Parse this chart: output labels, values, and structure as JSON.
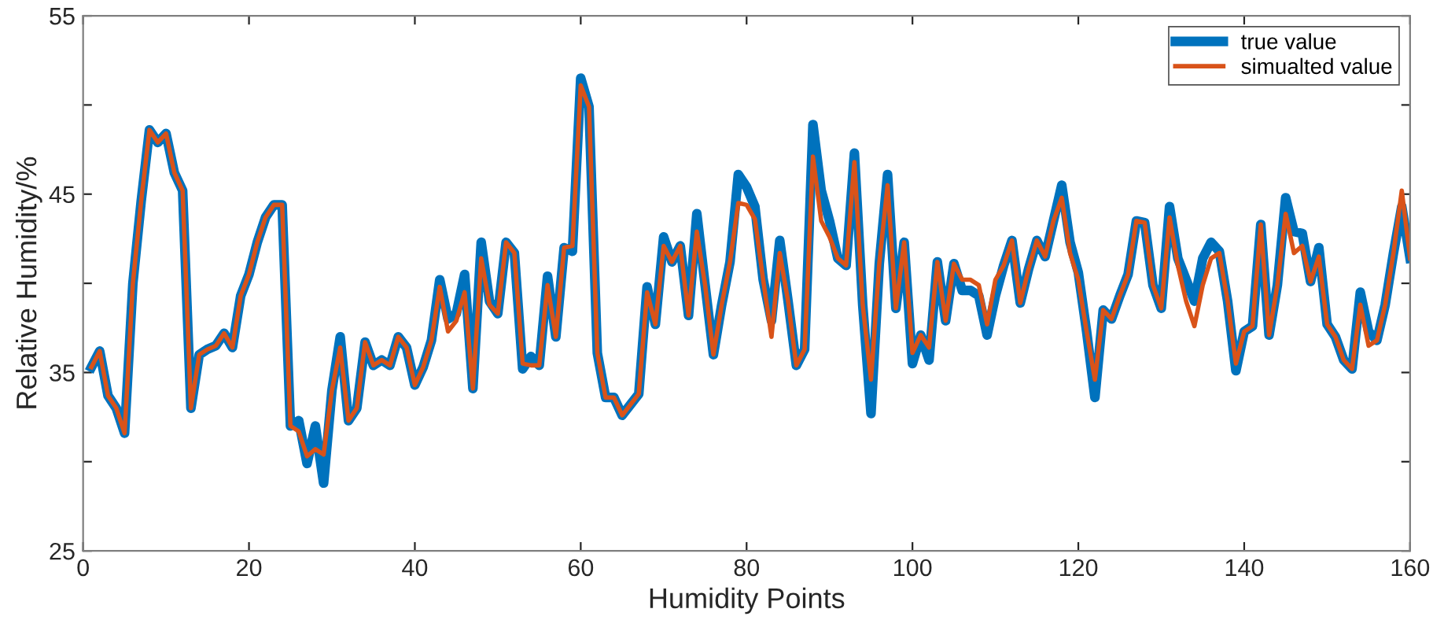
{
  "chart_data": {
    "type": "line",
    "xlabel": "Humidity Points",
    "ylabel": "Relative Humidity/%",
    "x": [
      1,
      2,
      3,
      4,
      5,
      6,
      7,
      8,
      9,
      10,
      11,
      12,
      13,
      14,
      15,
      16,
      17,
      18,
      19,
      20,
      21,
      22,
      23,
      24,
      25,
      26,
      27,
      28,
      29,
      30,
      31,
      32,
      33,
      34,
      35,
      36,
      37,
      38,
      39,
      40,
      41,
      42,
      43,
      44,
      45,
      46,
      47,
      48,
      49,
      50,
      51,
      52,
      53,
      54,
      55,
      56,
      57,
      58,
      59,
      60,
      61,
      62,
      63,
      64,
      65,
      66,
      67,
      68,
      69,
      70,
      71,
      72,
      73,
      74,
      75,
      76,
      77,
      78,
      79,
      80,
      81,
      82,
      83,
      84,
      85,
      86,
      87,
      88,
      89,
      90,
      91,
      92,
      93,
      94,
      95,
      96,
      97,
      98,
      99,
      100,
      101,
      102,
      103,
      104,
      105,
      106,
      107,
      108,
      109,
      110,
      111,
      112,
      113,
      114,
      115,
      116,
      117,
      118,
      119,
      120,
      121,
      122,
      123,
      124,
      125,
      126,
      127,
      128,
      129,
      130,
      131,
      132,
      133,
      134,
      135,
      136,
      137,
      138,
      139,
      140,
      141,
      142,
      143,
      144,
      145,
      146,
      147,
      148,
      149,
      150,
      151,
      152,
      153,
      154,
      155,
      156,
      157,
      158,
      159,
      160
    ],
    "series": [
      {
        "name": "true value",
        "color": "#0072bd",
        "values": [
          35.3,
          36.2,
          33.7,
          33.0,
          31.6,
          40.0,
          44.6,
          48.6,
          47.9,
          48.4,
          46.2,
          45.2,
          33.0,
          36.0,
          36.3,
          36.5,
          37.2,
          36.4,
          39.3,
          40.5,
          42.3,
          43.7,
          44.4,
          44.4,
          32.0,
          32.3,
          29.9,
          32.0,
          28.8,
          34.0,
          37.0,
          32.3,
          33.0,
          36.7,
          35.4,
          35.7,
          35.4,
          37.0,
          36.4,
          34.3,
          35.3,
          36.8,
          40.2,
          38.0,
          38.3,
          40.5,
          34.1,
          42.3,
          39.0,
          38.3,
          42.3,
          41.7,
          35.2,
          35.9,
          35.4,
          40.4,
          37.0,
          42.0,
          41.8,
          51.5,
          49.9,
          36.1,
          33.6,
          33.6,
          32.6,
          33.2,
          33.8,
          39.8,
          37.7,
          42.6,
          41.2,
          42.1,
          38.2,
          43.9,
          39.9,
          36.0,
          38.8,
          41.2,
          46.1,
          45.4,
          44.3,
          40.2,
          37.9,
          42.4,
          39.0,
          35.4,
          36.3,
          48.9,
          45.2,
          43.5,
          41.4,
          41.0,
          47.3,
          38.8,
          32.7,
          41.1,
          46.1,
          38.6,
          42.3,
          35.5,
          37.1,
          35.7,
          41.2,
          37.9,
          41.1,
          39.6,
          39.6,
          39.3,
          37.1,
          39.3,
          41.0,
          42.4,
          38.9,
          40.8,
          42.4,
          41.5,
          43.5,
          45.5,
          42.3,
          40.6,
          37.3,
          33.6,
          38.5,
          38.0,
          39.3,
          40.5,
          43.5,
          43.4,
          39.9,
          38.6,
          44.3,
          41.4,
          40.2,
          39.0,
          41.4,
          42.3,
          41.8,
          39.0,
          35.1,
          37.3,
          37.6,
          43.3,
          37.1,
          39.9,
          44.8,
          42.9,
          42.8,
          40.1,
          42.0,
          37.7,
          37.0,
          35.7,
          35.2,
          39.5,
          37.3,
          36.8,
          38.8,
          41.7,
          44.3,
          41.4
        ]
      },
      {
        "name": "simualted value",
        "color": "#d95319",
        "values": [
          35.3,
          36.2,
          33.7,
          33.0,
          31.6,
          40.0,
          44.6,
          48.6,
          47.9,
          48.4,
          46.2,
          45.2,
          33.0,
          36.0,
          36.3,
          36.5,
          37.2,
          36.4,
          39.3,
          40.5,
          42.3,
          43.7,
          44.4,
          44.4,
          32.0,
          31.7,
          30.3,
          30.7,
          30.4,
          34.0,
          36.4,
          32.3,
          33.0,
          36.7,
          35.4,
          35.7,
          35.4,
          37.0,
          36.4,
          34.3,
          35.3,
          36.8,
          39.8,
          37.3,
          37.9,
          39.5,
          34.1,
          41.4,
          38.8,
          38.3,
          42.3,
          41.7,
          35.5,
          35.4,
          35.4,
          39.9,
          37.0,
          42.0,
          42.1,
          51.1,
          49.9,
          36.1,
          33.6,
          33.6,
          32.6,
          33.2,
          33.8,
          39.5,
          37.7,
          42.1,
          41.2,
          42.1,
          38.2,
          42.9,
          39.9,
          36.0,
          38.8,
          41.2,
          44.5,
          44.4,
          43.6,
          40.2,
          37.0,
          41.7,
          39.0,
          35.4,
          36.3,
          47.1,
          43.5,
          42.6,
          41.4,
          41.0,
          46.8,
          38.8,
          34.6,
          41.1,
          45.5,
          38.6,
          42.3,
          36.1,
          37.1,
          36.4,
          41.2,
          37.9,
          41.1,
          40.2,
          40.2,
          39.9,
          37.7,
          40.2,
          41.0,
          42.4,
          38.9,
          40.8,
          42.4,
          41.5,
          43.5,
          44.8,
          41.7,
          40.2,
          37.3,
          34.6,
          38.5,
          38.0,
          39.3,
          40.5,
          43.5,
          43.4,
          39.9,
          38.6,
          43.7,
          41.0,
          39.0,
          37.6,
          39.9,
          41.4,
          41.7,
          39.0,
          35.5,
          37.3,
          37.6,
          43.3,
          37.1,
          39.9,
          43.9,
          41.7,
          42.1,
          40.1,
          41.5,
          37.7,
          37.0,
          35.7,
          35.2,
          38.8,
          36.5,
          36.8,
          38.8,
          41.7,
          45.2,
          41.4
        ]
      }
    ],
    "xlim": [
      0,
      160
    ],
    "xticks": [
      0,
      20,
      40,
      60,
      80,
      100,
      120,
      140,
      160
    ],
    "ylim": [
      25,
      55
    ],
    "yticks": [
      25,
      {
        "value": 30,
        "label": null
      },
      35,
      {
        "value": 40,
        "label": null
      },
      45,
      {
        "value": 50,
        "label": null
      },
      55
    ],
    "legend": "top right",
    "grid": false,
    "line_style": "solid",
    "marker": "none"
  }
}
